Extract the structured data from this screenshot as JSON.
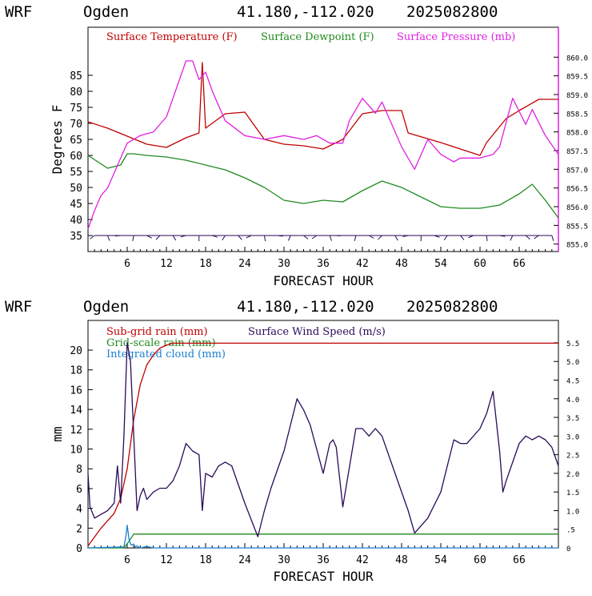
{
  "header": {
    "model": "WRF",
    "station": "Ogden",
    "coords": "41.180,-112.020",
    "run": "2025082800"
  },
  "colors": {
    "temperature": "#c00000",
    "dewpoint": "#1f8a1f",
    "pressure": "#e020e0",
    "subgrid_rain": "#c00000",
    "gridscale_rain": "#1f8a1f",
    "cloud": "#1a7fd0",
    "wind": "#2a0a5a",
    "axis": "#000000"
  },
  "chart_data": [
    {
      "type": "line",
      "xlabel": "FORECAST HOUR",
      "ylabel": "Degrees F",
      "xlim": [
        0,
        72
      ],
      "ylim": [
        30,
        100
      ],
      "y2lim": [
        854.8,
        860.8
      ],
      "xticks": [
        "6",
        "12",
        "18",
        "24",
        "30",
        "36",
        "42",
        "48",
        "54",
        "60",
        "66"
      ],
      "xtick_values": [
        6,
        12,
        18,
        24,
        30,
        36,
        42,
        48,
        54,
        60,
        66
      ],
      "yticks": [
        "35",
        "40",
        "45",
        "50",
        "55",
        "60",
        "65",
        "70",
        "75",
        "80",
        "85"
      ],
      "ytick_values": [
        35,
        40,
        45,
        50,
        55,
        60,
        65,
        70,
        75,
        80,
        85
      ],
      "y2ticks": [
        "855.0",
        "855.5",
        "856.0",
        "856.5",
        "857.0",
        "857.5",
        "858.0",
        "858.5",
        "859.0",
        "859.5",
        "860.0"
      ],
      "y2tick_values": [
        855.0,
        855.5,
        856.0,
        856.5,
        857.0,
        857.5,
        858.0,
        858.5,
        859.0,
        859.5,
        860.0
      ],
      "legend": [
        "Surface Temperature (F)",
        "Surface Dewpoint (F)",
        "Surface Pressure (mb)"
      ],
      "series": [
        {
          "name": "Surface Temperature (F)",
          "axis": "left",
          "x": [
            0,
            3,
            6,
            9,
            12,
            15,
            17,
            17.5,
            18,
            21,
            24,
            27,
            30,
            33,
            36,
            39,
            42,
            45,
            48,
            49,
            54,
            57,
            60,
            61,
            64,
            66,
            69,
            72
          ],
          "y": [
            70.5,
            68.5,
            66,
            63.5,
            62.5,
            65.5,
            67,
            89,
            68.5,
            73,
            73.5,
            65,
            63.5,
            63,
            62,
            65,
            73,
            74,
            74,
            67,
            64,
            62,
            60,
            64,
            71.5,
            74,
            77.5,
            77.5
          ]
        },
        {
          "name": "Surface Dewpoint (F)",
          "axis": "left",
          "x": [
            0,
            3,
            5,
            6,
            7,
            9,
            12,
            15,
            18,
            21,
            24,
            27,
            30,
            33,
            36,
            39,
            42,
            45,
            48,
            50,
            54,
            57,
            60,
            63,
            66,
            68,
            70,
            72
          ],
          "y": [
            60,
            56,
            57,
            60.5,
            60.5,
            60,
            59.5,
            58.5,
            57,
            55.5,
            53,
            50,
            46,
            45,
            46,
            45.5,
            49,
            52,
            50,
            48,
            44,
            43.5,
            43.5,
            44.5,
            48,
            51,
            46,
            40.5
          ]
        },
        {
          "name": "Surface Pressure (mb)",
          "axis": "right",
          "x": [
            0,
            1,
            2,
            3,
            4,
            5,
            6,
            8,
            10,
            12,
            13,
            15,
            16,
            17,
            18,
            19,
            21,
            24,
            27,
            30,
            33,
            35,
            37,
            39,
            40,
            42,
            44,
            45,
            48,
            50,
            52,
            54,
            56,
            57,
            60,
            62,
            63,
            65,
            67,
            68,
            70,
            72
          ],
          "y": [
            855.4,
            855.9,
            856.3,
            856.5,
            856.9,
            857.3,
            857.7,
            857.9,
            858.0,
            858.4,
            858.9,
            859.9,
            859.9,
            859.4,
            859.6,
            859.1,
            858.3,
            857.9,
            857.8,
            857.9,
            857.8,
            857.9,
            857.7,
            857.7,
            858.3,
            858.9,
            858.5,
            858.8,
            857.6,
            857.0,
            857.8,
            857.4,
            857.2,
            857.3,
            857.3,
            857.4,
            857.6,
            858.9,
            858.2,
            858.6,
            857.9,
            857.4
          ]
        }
      ],
      "wind_barbs": {
        "row_y": 35,
        "x_from": 1,
        "x_to": 71,
        "step": 2
      }
    },
    {
      "type": "line",
      "xlabel": "FORECAST HOUR",
      "ylabel": "mm",
      "xlim": [
        0,
        72
      ],
      "ylim": [
        0,
        23
      ],
      "y2lim": [
        0,
        6.1
      ],
      "xticks": [
        "6",
        "12",
        "18",
        "24",
        "30",
        "36",
        "42",
        "48",
        "54",
        "60",
        "66"
      ],
      "xtick_values": [
        6,
        12,
        18,
        24,
        30,
        36,
        42,
        48,
        54,
        60,
        66
      ],
      "yticks": [
        "0",
        "2",
        "4",
        "6",
        "8",
        "10",
        "12",
        "14",
        "16",
        "18",
        "20"
      ],
      "ytick_values": [
        0,
        2,
        4,
        6,
        8,
        10,
        12,
        14,
        16,
        18,
        20
      ],
      "y2ticks": [
        "0",
        ".5",
        "1.0",
        "1.5",
        "2.0",
        "2.5",
        "3.0",
        "3.5",
        "4.0",
        "4.5",
        "5.0",
        "5.5"
      ],
      "y2tick_values": [
        0,
        0.5,
        1.0,
        1.5,
        2.0,
        2.5,
        3.0,
        3.5,
        4.0,
        4.5,
        5.0,
        5.5
      ],
      "legend": [
        "Sub-grid rain (mm)",
        "Grid-scale rain (mm)",
        "Integrated cloud (mm)",
        "Surface Wind Speed (m/s)"
      ],
      "series": [
        {
          "name": "Sub-grid rain (mm)",
          "axis": "left",
          "x": [
            0,
            2,
            4,
            5,
            6,
            7,
            8,
            9,
            10,
            11,
            12,
            13,
            72
          ],
          "y": [
            0.2,
            2,
            3.5,
            5,
            8,
            13,
            16.5,
            18.5,
            19.5,
            20.2,
            20.5,
            20.7,
            20.7
          ]
        },
        {
          "name": "Grid-scale rain (mm)",
          "axis": "left",
          "x": [
            0,
            5.5,
            6.2,
            7,
            72
          ],
          "y": [
            0,
            0,
            0.6,
            1.4,
            1.4
          ]
        },
        {
          "name": "Integrated cloud (mm)",
          "axis": "left",
          "x": [
            0,
            5.5,
            5.8,
            6,
            6.3,
            6.6,
            6.8,
            7,
            7.2,
            7.5,
            8,
            9,
            10,
            72
          ],
          "y": [
            0,
            0.1,
            1.2,
            2.3,
            0.8,
            0.3,
            0.3,
            0.4,
            0.1,
            0.2,
            0,
            0.15,
            0,
            0
          ]
        },
        {
          "name": "Surface Wind Speed (m/s)",
          "axis": "right",
          "x": [
            0,
            0.3,
            1,
            2,
            3,
            4,
            4.5,
            5,
            5.5,
            6,
            6.5,
            7,
            7.5,
            8,
            8.5,
            9,
            10,
            11,
            12,
            13,
            14,
            15,
            16,
            17,
            17.5,
            18,
            19,
            20,
            21,
            22,
            24,
            26,
            27,
            28,
            30,
            32,
            33,
            34,
            36,
            37,
            37.5,
            38,
            39,
            41,
            42,
            43,
            44,
            45,
            47,
            49,
            50,
            52,
            54,
            56,
            57,
            58,
            60,
            61,
            62,
            63,
            63.5,
            64,
            66,
            67,
            68,
            69,
            70,
            71,
            72
          ],
          "y": [
            2.0,
            1.1,
            0.8,
            0.9,
            1.0,
            1.2,
            2.2,
            1.2,
            3.0,
            5.5,
            5.0,
            3.0,
            1.0,
            1.4,
            1.6,
            1.3,
            1.5,
            1.6,
            1.6,
            1.8,
            2.2,
            2.8,
            2.6,
            2.5,
            1.0,
            2.0,
            1.9,
            2.2,
            2.3,
            2.2,
            1.2,
            0.3,
            1.0,
            1.6,
            2.6,
            4.0,
            3.7,
            3.3,
            2.0,
            2.8,
            2.9,
            2.7,
            1.1,
            3.2,
            3.2,
            3.0,
            3.2,
            3.0,
            2.0,
            1.0,
            0.4,
            0.8,
            1.5,
            2.9,
            2.8,
            2.8,
            3.2,
            3.6,
            4.2,
            2.6,
            1.5,
            1.8,
            2.8,
            3.0,
            2.9,
            3.0,
            2.9,
            2.7,
            2.2
          ]
        }
      ]
    }
  ]
}
